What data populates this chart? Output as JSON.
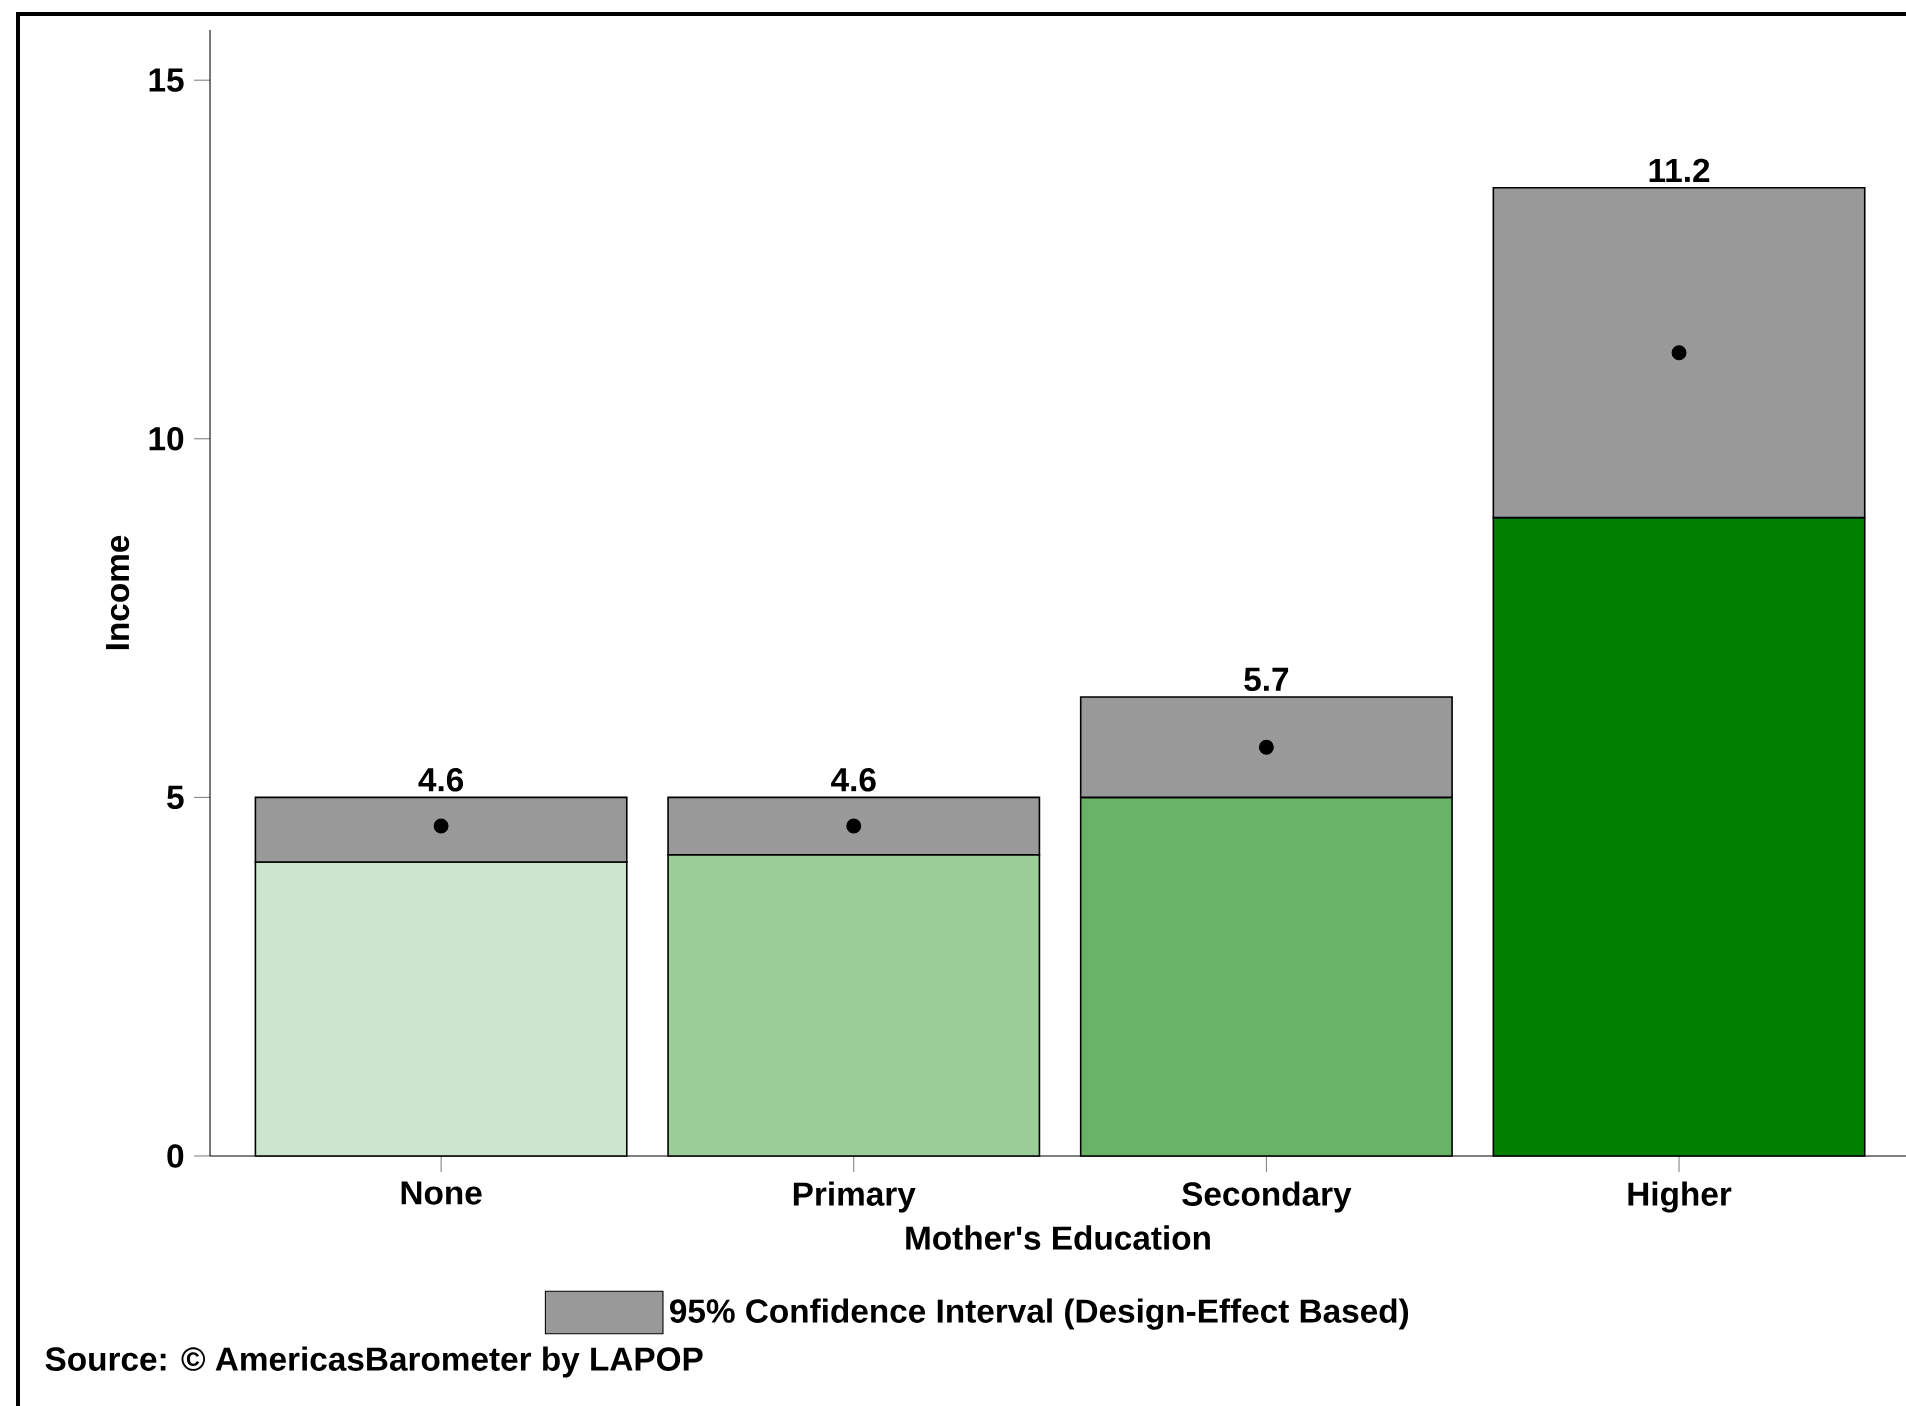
{
  "chart_data": {
    "type": "bar",
    "stacked": true,
    "xlabel": "Mother's Education",
    "ylabel": "Income",
    "categories": [
      "None",
      "Primary",
      "Secondary",
      "Higher"
    ],
    "series": [
      {
        "colors": [
          "#cde5cc",
          "#9acd97",
          "#69b366",
          "#008000"
        ],
        "values": [
          4.1,
          4.2,
          5.0,
          8.9
        ]
      },
      {
        "name": "95% Confidence Interval (Design-Effect Based)",
        "color": "#999999",
        "values": [
          0.9,
          0.8,
          1.4,
          4.6
        ]
      },
      {
        "type": "scatter",
        "color": "#000000",
        "x": [
          "None",
          "Primary",
          "Secondary",
          "Higher"
        ],
        "values": [
          4.6,
          4.6,
          5.7,
          11.2
        ]
      }
    ],
    "marker": "circle",
    "ylim": [
      0,
      15.7
    ],
    "yticks": [
      0,
      5,
      10,
      15
    ],
    "legend": "bottom",
    "grid": false,
    "annotations": [
      {
        "text": "4.6",
        "x": "None",
        "y": 5.0
      },
      {
        "text": "4.6",
        "x": "Primary",
        "y": 5.0
      },
      {
        "text": "5.7",
        "x": "Secondary",
        "y": 6.4
      },
      {
        "text": "11.2",
        "x": "Higher",
        "y": 13.5
      },
      "Source: © AmericasBarometer by LAPOP"
    ]
  }
}
